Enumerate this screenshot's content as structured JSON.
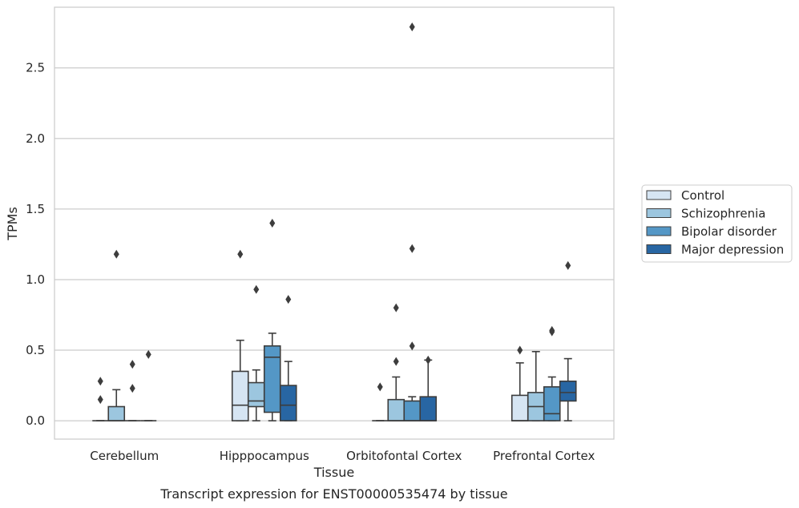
{
  "caption": "Transcript expression for ENST00000535474 by tissue",
  "chart_data": {
    "type": "box",
    "xlabel": "Tissue",
    "ylabel": "TPMs",
    "ylim": [
      -0.13,
      2.93
    ],
    "yticks": [
      0.0,
      0.5,
      1.0,
      1.5,
      2.0,
      2.5
    ],
    "ytick_labels": [
      "0.0",
      "0.5",
      "1.0",
      "1.5",
      "2.0",
      "2.5"
    ],
    "grid": "horizontal",
    "legend_position": "right",
    "categories": [
      "Cerebellum",
      "Hipppocampus",
      "Orbitofontal Cortex",
      "Prefrontal Cortex"
    ],
    "series": [
      {
        "name": "Control",
        "color": "#d6e5f3",
        "boxes": [
          {
            "min": 0.0,
            "q1": 0.0,
            "median": 0.0,
            "q3": 0.0,
            "max": 0.0,
            "outliers": [
              0.15,
              0.28
            ]
          },
          {
            "min": 0.0,
            "q1": 0.0,
            "median": 0.11,
            "q3": 0.35,
            "max": 0.57,
            "outliers": [
              1.18
            ]
          },
          {
            "min": 0.0,
            "q1": 0.0,
            "median": 0.0,
            "q3": 0.0,
            "max": 0.0,
            "outliers": [
              0.24
            ]
          },
          {
            "min": 0.0,
            "q1": 0.0,
            "median": 0.0,
            "q3": 0.18,
            "max": 0.41,
            "outliers": [
              0.5
            ]
          }
        ]
      },
      {
        "name": "Schizophrenia",
        "color": "#9cc6df",
        "boxes": [
          {
            "min": 0.0,
            "q1": 0.0,
            "median": 0.0,
            "q3": 0.1,
            "max": 0.22,
            "outliers": [
              1.18
            ]
          },
          {
            "min": 0.0,
            "q1": 0.1,
            "median": 0.14,
            "q3": 0.27,
            "max": 0.36,
            "outliers": [
              0.93
            ]
          },
          {
            "min": 0.0,
            "q1": 0.0,
            "median": 0.0,
            "q3": 0.15,
            "max": 0.31,
            "outliers": [
              0.42,
              0.8
            ]
          },
          {
            "min": 0.0,
            "q1": 0.0,
            "median": 0.1,
            "q3": 0.2,
            "max": 0.49,
            "outliers": []
          }
        ]
      },
      {
        "name": "Bipolar disorder",
        "color": "#5497c6",
        "boxes": [
          {
            "min": 0.0,
            "q1": 0.0,
            "median": 0.0,
            "q3": 0.0,
            "max": 0.0,
            "outliers": [
              0.23,
              0.4
            ]
          },
          {
            "min": 0.0,
            "q1": 0.06,
            "median": 0.45,
            "q3": 0.53,
            "max": 0.62,
            "outliers": [
              1.4
            ]
          },
          {
            "min": 0.0,
            "q1": 0.0,
            "median": 0.0,
            "q3": 0.14,
            "max": 0.17,
            "outliers": [
              0.53,
              1.22,
              2.79
            ]
          },
          {
            "min": 0.0,
            "q1": 0.0,
            "median": 0.05,
            "q3": 0.24,
            "max": 0.31,
            "outliers": [
              0.63,
              0.64
            ]
          }
        ]
      },
      {
        "name": "Major depression",
        "color": "#2866a3",
        "boxes": [
          {
            "min": 0.0,
            "q1": 0.0,
            "median": 0.0,
            "q3": 0.0,
            "max": 0.0,
            "outliers": [
              0.47
            ]
          },
          {
            "min": 0.0,
            "q1": 0.0,
            "median": 0.11,
            "q3": 0.25,
            "max": 0.42,
            "outliers": [
              0.86
            ]
          },
          {
            "min": 0.0,
            "q1": 0.0,
            "median": 0.0,
            "q3": 0.17,
            "max": 0.43,
            "outliers": [
              0.43
            ]
          },
          {
            "min": 0.0,
            "q1": 0.14,
            "median": 0.2,
            "q3": 0.28,
            "max": 0.44,
            "outliers": [
              1.1
            ]
          }
        ]
      }
    ]
  }
}
